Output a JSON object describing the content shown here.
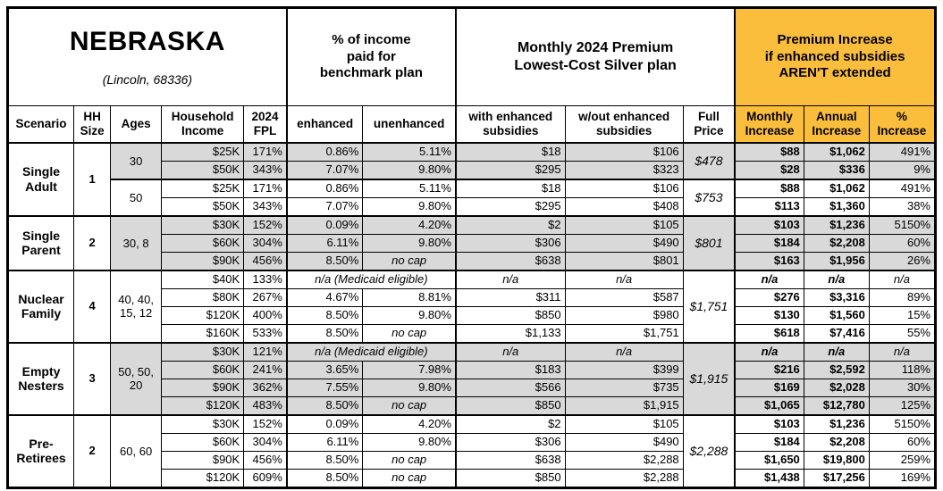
{
  "colors": {
    "accent_orange": "#FBBE3C",
    "row_gray": "#D9D9D9",
    "border": "#000000"
  },
  "title": {
    "state": "NEBRASKA",
    "location": "(Lincoln, 68336)"
  },
  "column_groups": {
    "benchmark": "% of income\npaid for\nbenchmark plan",
    "premium": "Monthly 2024 Premium\nLowest-Cost Silver plan",
    "increase": "Premium Increase\nif enhanced subsidies\nAREN'T extended"
  },
  "columns": {
    "scenario": "Scenario",
    "hh_size": "HH\nSize",
    "ages": "Ages",
    "income": "Household\nIncome",
    "fpl": "2024\nFPL",
    "enhanced": "enhanced",
    "unenhanced": "unenhanced",
    "with_subsidies": "with enhanced\nsubsidies",
    "without_subsidies": "w/out enhanced\nsubsidies",
    "full_price": "Full\nPrice",
    "monthly": "Monthly\nIncrease",
    "annual": "Annual\nIncrease",
    "pct": "%\nIncrease"
  },
  "groups": [
    {
      "scenario": "Single Adult",
      "hh_size": "1",
      "subgroups": [
        {
          "ages": "30",
          "shaded": true,
          "full_price": "$478",
          "rows": [
            {
              "income": "$25K",
              "fpl": "171%",
              "enhanced": "0.86%",
              "unenhanced": "5.11%",
              "with_sub": "$18",
              "without_sub": "$106",
              "monthly": "$88",
              "annual": "$1,062",
              "pct": "491%"
            },
            {
              "income": "$50K",
              "fpl": "343%",
              "enhanced": "7.07%",
              "unenhanced": "9.80%",
              "with_sub": "$295",
              "without_sub": "$323",
              "monthly": "$28",
              "annual": "$336",
              "pct": "9%"
            }
          ]
        },
        {
          "ages": "50",
          "shaded": false,
          "full_price": "$753",
          "rows": [
            {
              "income": "$25K",
              "fpl": "171%",
              "enhanced": "0.86%",
              "unenhanced": "5.11%",
              "with_sub": "$18",
              "without_sub": "$106",
              "monthly": "$88",
              "annual": "$1,062",
              "pct": "491%"
            },
            {
              "income": "$50K",
              "fpl": "343%",
              "enhanced": "7.07%",
              "unenhanced": "9.80%",
              "with_sub": "$295",
              "without_sub": "$408",
              "monthly": "$113",
              "annual": "$1,360",
              "pct": "38%"
            }
          ]
        }
      ]
    },
    {
      "scenario": "Single Parent",
      "hh_size": "2",
      "subgroups": [
        {
          "ages": "30, 8",
          "shaded": true,
          "full_price": "$801",
          "rows": [
            {
              "income": "$30K",
              "fpl": "152%",
              "enhanced": "0.09%",
              "unenhanced": "4.20%",
              "with_sub": "$2",
              "without_sub": "$105",
              "monthly": "$103",
              "annual": "$1,236",
              "pct": "5150%"
            },
            {
              "income": "$60K",
              "fpl": "304%",
              "enhanced": "6.11%",
              "unenhanced": "9.80%",
              "with_sub": "$306",
              "without_sub": "$490",
              "monthly": "$184",
              "annual": "$2,208",
              "pct": "60%"
            },
            {
              "income": "$90K",
              "fpl": "456%",
              "enhanced": "8.50%",
              "unenhanced": "no cap",
              "with_sub": "$638",
              "without_sub": "$801",
              "monthly": "$163",
              "annual": "$1,956",
              "pct": "26%"
            }
          ]
        }
      ]
    },
    {
      "scenario": "Nuclear Family",
      "hh_size": "4",
      "subgroups": [
        {
          "ages": "40, 40, 15, 12",
          "shaded": false,
          "full_price": "$1,751",
          "rows": [
            {
              "income": "$40K",
              "fpl": "133%",
              "medicaid": true,
              "enhanced": "n/a (Medicaid eligible)",
              "unenhanced": "",
              "with_sub": "n/a",
              "without_sub": "n/a",
              "monthly": "n/a",
              "annual": "n/a",
              "pct": "n/a"
            },
            {
              "income": "$80K",
              "fpl": "267%",
              "enhanced": "4.67%",
              "unenhanced": "8.81%",
              "with_sub": "$311",
              "without_sub": "$587",
              "monthly": "$276",
              "annual": "$3,316",
              "pct": "89%"
            },
            {
              "income": "$120K",
              "fpl": "400%",
              "enhanced": "8.50%",
              "unenhanced": "9.80%",
              "with_sub": "$850",
              "without_sub": "$980",
              "monthly": "$130",
              "annual": "$1,560",
              "pct": "15%"
            },
            {
              "income": "$160K",
              "fpl": "533%",
              "enhanced": "8.50%",
              "unenhanced": "no cap",
              "with_sub": "$1,133",
              "without_sub": "$1,751",
              "monthly": "$618",
              "annual": "$7,416",
              "pct": "55%"
            }
          ]
        }
      ]
    },
    {
      "scenario": "Empty Nesters",
      "hh_size": "3",
      "subgroups": [
        {
          "ages": "50, 50, 20",
          "shaded": true,
          "full_price": "$1,915",
          "rows": [
            {
              "income": "$30K",
              "fpl": "121%",
              "medicaid": true,
              "enhanced": "n/a (Medicaid eligible)",
              "unenhanced": "",
              "with_sub": "n/a",
              "without_sub": "n/a",
              "monthly": "n/a",
              "annual": "n/a",
              "pct": "n/a"
            },
            {
              "income": "$60K",
              "fpl": "241%",
              "enhanced": "3.65%",
              "unenhanced": "7.98%",
              "with_sub": "$183",
              "without_sub": "$399",
              "monthly": "$216",
              "annual": "$2,592",
              "pct": "118%"
            },
            {
              "income": "$90K",
              "fpl": "362%",
              "enhanced": "7.55%",
              "unenhanced": "9.80%",
              "with_sub": "$566",
              "without_sub": "$735",
              "monthly": "$169",
              "annual": "$2,028",
              "pct": "30%"
            },
            {
              "income": "$120K",
              "fpl": "483%",
              "enhanced": "8.50%",
              "unenhanced": "no cap",
              "with_sub": "$850",
              "without_sub": "$1,915",
              "monthly": "$1,065",
              "annual": "$12,780",
              "pct": "125%"
            }
          ]
        }
      ]
    },
    {
      "scenario": "Pre-Retirees",
      "hh_size": "2",
      "subgroups": [
        {
          "ages": "60, 60",
          "shaded": false,
          "full_price": "$2,288",
          "rows": [
            {
              "income": "$30K",
              "fpl": "152%",
              "enhanced": "0.09%",
              "unenhanced": "4.20%",
              "with_sub": "$2",
              "without_sub": "$105",
              "monthly": "$103",
              "annual": "$1,236",
              "pct": "5150%"
            },
            {
              "income": "$60K",
              "fpl": "304%",
              "enhanced": "6.11%",
              "unenhanced": "9.80%",
              "with_sub": "$306",
              "without_sub": "$490",
              "monthly": "$184",
              "annual": "$2,208",
              "pct": "60%"
            },
            {
              "income": "$90K",
              "fpl": "456%",
              "enhanced": "8.50%",
              "unenhanced": "no cap",
              "with_sub": "$638",
              "without_sub": "$2,288",
              "monthly": "$1,650",
              "annual": "$19,800",
              "pct": "259%"
            },
            {
              "income": "$120K",
              "fpl": "609%",
              "enhanced": "8.50%",
              "unenhanced": "no cap",
              "with_sub": "$850",
              "without_sub": "$2,288",
              "monthly": "$1,438",
              "annual": "$17,256",
              "pct": "169%"
            }
          ]
        }
      ]
    }
  ]
}
